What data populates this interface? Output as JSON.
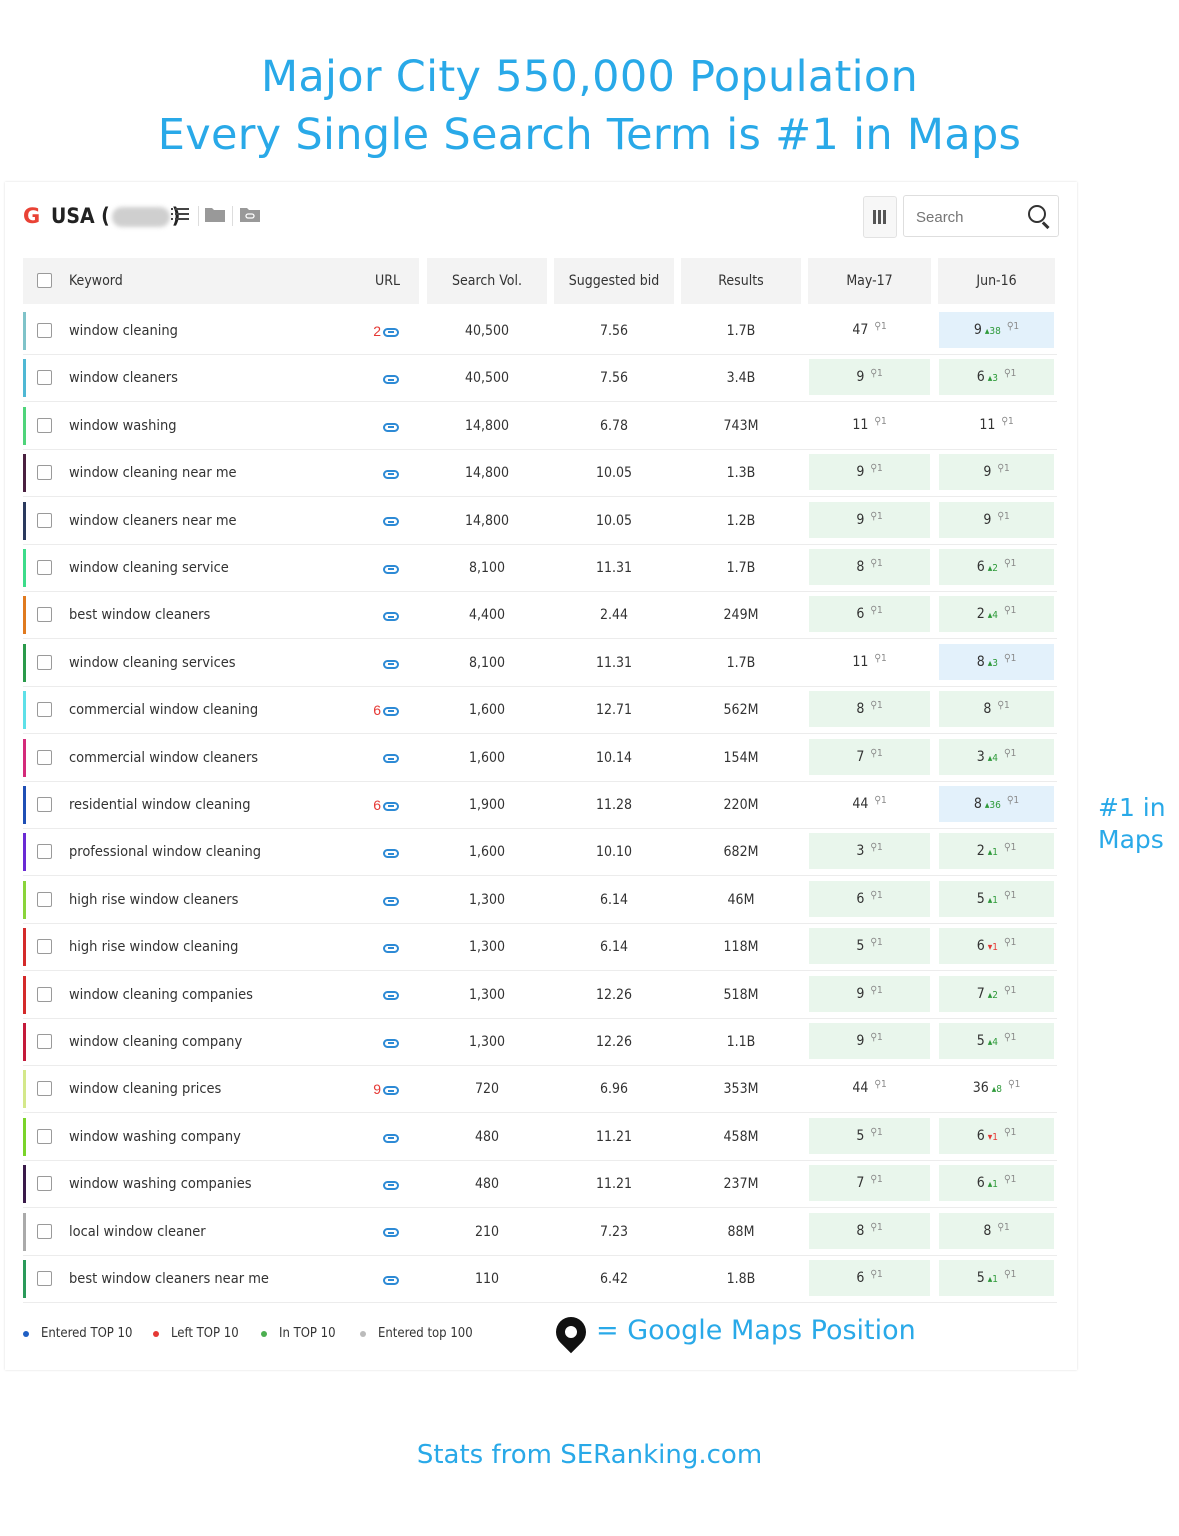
{
  "headline": {
    "line1": "Major City 550,000 Population",
    "line2": "Every Single Search Term is #1 in Maps"
  },
  "toolbar": {
    "engine_logo": "G",
    "country_prefix": "USA (",
    "country_suffix": ")",
    "columns_icon": "columns-icon",
    "search": {
      "placeholder": "Search"
    }
  },
  "table": {
    "headers": {
      "keyword": "Keyword",
      "url": "URL",
      "search_vol": "Search Vol.",
      "suggested_bid": "Suggested bid",
      "results": "Results",
      "date1": "May-17",
      "date2": "Jun-16"
    },
    "maps_pin_rank": "1",
    "rows": [
      {
        "keyword": "window cleaning",
        "url_num": "2",
        "vol": "40,500",
        "bid": "7.56",
        "results": "1.7B",
        "may": "47",
        "jun": "9",
        "jun_change": "38",
        "jun_dir": "up",
        "color": "#7fc3c9",
        "may_bg": "",
        "jun_bg": "blue"
      },
      {
        "keyword": "window cleaners",
        "url_num": "",
        "vol": "40,500",
        "bid": "7.56",
        "results": "3.4B",
        "may": "9",
        "jun": "6",
        "jun_change": "3",
        "jun_dir": "up",
        "color": "#4fb8d4",
        "may_bg": "green",
        "jun_bg": "green"
      },
      {
        "keyword": "window washing",
        "url_num": "",
        "vol": "14,800",
        "bid": "6.78",
        "results": "743M",
        "may": "11",
        "jun": "11",
        "jun_change": "",
        "jun_dir": "",
        "color": "#4fd47a",
        "may_bg": "",
        "jun_bg": ""
      },
      {
        "keyword": "window cleaning near me",
        "url_num": "",
        "vol": "14,800",
        "bid": "10.05",
        "results": "1.3B",
        "may": "9",
        "jun": "9",
        "jun_change": "",
        "jun_dir": "",
        "color": "#4a2040",
        "may_bg": "green",
        "jun_bg": "green"
      },
      {
        "keyword": "window cleaners near me",
        "url_num": "",
        "vol": "14,800",
        "bid": "10.05",
        "results": "1.2B",
        "may": "9",
        "jun": "9",
        "jun_change": "",
        "jun_dir": "",
        "color": "#2a3a5e",
        "may_bg": "green",
        "jun_bg": "green"
      },
      {
        "keyword": "window cleaning service",
        "url_num": "",
        "vol": "8,100",
        "bid": "11.31",
        "results": "1.7B",
        "may": "8",
        "jun": "6",
        "jun_change": "2",
        "jun_dir": "up",
        "color": "#3ddc8a",
        "may_bg": "green",
        "jun_bg": "green"
      },
      {
        "keyword": "best window cleaners",
        "url_num": "",
        "vol": "4,400",
        "bid": "2.44",
        "results": "249M",
        "may": "6",
        "jun": "2",
        "jun_change": "4",
        "jun_dir": "up",
        "color": "#e07a1f",
        "may_bg": "green",
        "jun_bg": "green"
      },
      {
        "keyword": "window cleaning services",
        "url_num": "",
        "vol": "8,100",
        "bid": "11.31",
        "results": "1.7B",
        "may": "11",
        "jun": "8",
        "jun_change": "3",
        "jun_dir": "up",
        "color": "#2a9a4a",
        "may_bg": "",
        "jun_bg": "blue"
      },
      {
        "keyword": "commercial window cleaning",
        "url_num": "6",
        "vol": "1,600",
        "bid": "12.71",
        "results": "562M",
        "may": "8",
        "jun": "8",
        "jun_change": "",
        "jun_dir": "",
        "color": "#5ee0e8",
        "may_bg": "green",
        "jun_bg": "green"
      },
      {
        "keyword": "commercial window cleaners",
        "url_num": "",
        "vol": "1,600",
        "bid": "10.14",
        "results": "154M",
        "may": "7",
        "jun": "3",
        "jun_change": "4",
        "jun_dir": "up",
        "color": "#d42a7a",
        "may_bg": "green",
        "jun_bg": "green"
      },
      {
        "keyword": "residential window cleaning",
        "url_num": "6",
        "vol": "1,900",
        "bid": "11.28",
        "results": "220M",
        "may": "44",
        "jun": "8",
        "jun_change": "36",
        "jun_dir": "up",
        "color": "#1f4fb5",
        "may_bg": "",
        "jun_bg": "blue"
      },
      {
        "keyword": "professional window cleaning",
        "url_num": "",
        "vol": "1,600",
        "bid": "10.10",
        "results": "682M",
        "may": "3",
        "jun": "2",
        "jun_change": "1",
        "jun_dir": "up",
        "color": "#6a2ad4",
        "may_bg": "green",
        "jun_bg": "green"
      },
      {
        "keyword": "high rise window cleaners",
        "url_num": "",
        "vol": "1,300",
        "bid": "6.14",
        "results": "46M",
        "may": "6",
        "jun": "5",
        "jun_change": "1",
        "jun_dir": "up",
        "color": "#8ad43a",
        "may_bg": "green",
        "jun_bg": "green"
      },
      {
        "keyword": "high rise window cleaning",
        "url_num": "",
        "vol": "1,300",
        "bid": "6.14",
        "results": "118M",
        "may": "5",
        "jun": "6",
        "jun_change": "1",
        "jun_dir": "down",
        "color": "#d42a2a",
        "may_bg": "green",
        "jun_bg": "green"
      },
      {
        "keyword": "window cleaning companies",
        "url_num": "",
        "vol": "1,300",
        "bid": "12.26",
        "results": "518M",
        "may": "9",
        "jun": "7",
        "jun_change": "2",
        "jun_dir": "up",
        "color": "#d42a2a",
        "may_bg": "green",
        "jun_bg": "green"
      },
      {
        "keyword": "window cleaning company",
        "url_num": "",
        "vol": "1,300",
        "bid": "12.26",
        "results": "1.1B",
        "may": "9",
        "jun": "5",
        "jun_change": "4",
        "jun_dir": "up",
        "color": "#c41a3a",
        "may_bg": "green",
        "jun_bg": "green"
      },
      {
        "keyword": "window cleaning prices",
        "url_num": "9",
        "vol": "720",
        "bid": "6.96",
        "results": "353M",
        "may": "44",
        "jun": "36",
        "jun_change": "8",
        "jun_dir": "up",
        "color": "#d4e88a",
        "may_bg": "",
        "jun_bg": ""
      },
      {
        "keyword": "window washing company",
        "url_num": "",
        "vol": "480",
        "bid": "11.21",
        "results": "458M",
        "may": "5",
        "jun": "6",
        "jun_change": "1",
        "jun_dir": "down",
        "color": "#7ad42a",
        "may_bg": "green",
        "jun_bg": "green"
      },
      {
        "keyword": "window washing companies",
        "url_num": "",
        "vol": "480",
        "bid": "11.21",
        "results": "237M",
        "may": "7",
        "jun": "6",
        "jun_change": "1",
        "jun_dir": "up",
        "color": "#3a1a4a",
        "may_bg": "green",
        "jun_bg": "green"
      },
      {
        "keyword": "local window cleaner",
        "url_num": "",
        "vol": "210",
        "bid": "7.23",
        "results": "88M",
        "may": "8",
        "jun": "8",
        "jun_change": "",
        "jun_dir": "",
        "color": "#aaaaaa",
        "may_bg": "green",
        "jun_bg": "green"
      },
      {
        "keyword": "best window cleaners near me",
        "url_num": "",
        "vol": "110",
        "bid": "6.42",
        "results": "1.8B",
        "may": "6",
        "jun": "5",
        "jun_change": "1",
        "jun_dir": "up",
        "color": "#2a9a5a",
        "may_bg": "green",
        "jun_bg": "green"
      }
    ]
  },
  "legend": [
    {
      "label": "Entered TOP 10",
      "color": "#1f5fc4"
    },
    {
      "label": "Left TOP 10",
      "color": "#e53935"
    },
    {
      "label": "In TOP 10",
      "color": "#4caf50"
    },
    {
      "label": "Entered top 100",
      "color": "#bbbbbb"
    }
  ],
  "maps_note": "= Google Maps Position",
  "side_note": "#1 in Maps",
  "footer": "Stats from SERanking.com"
}
